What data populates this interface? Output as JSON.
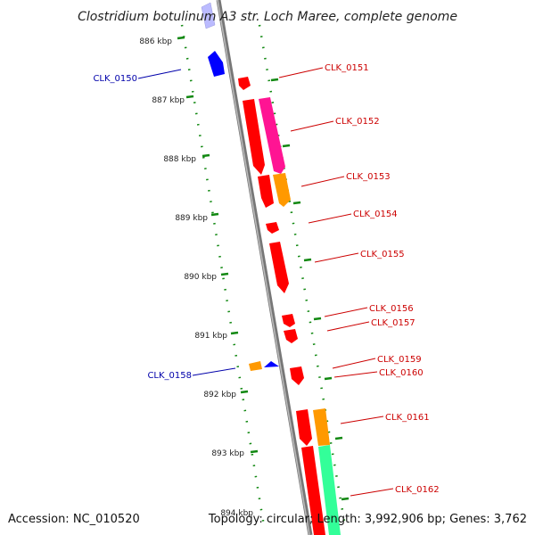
{
  "title": "Clostridium botulinum A3 str. Loch Maree, complete genome",
  "footer": {
    "accession": "Accession: NC_010520",
    "topology": "Topology: circular; Length: 3,992,906 bp; Genes: 3,762"
  },
  "colors": {
    "backbone": "#888888",
    "tick": "#118811",
    "forward_gene": "#ff0000",
    "reverse_gene": "#0000ff",
    "forward_label": "#cc0000",
    "reverse_label": "#0000aa",
    "magenta_feature": "#ff1493",
    "orange_feature": "#ff9900",
    "green_feature": "#33ff99"
  },
  "kbp_labels": [
    "886 kbp",
    "887 kbp",
    "888 kbp",
    "889 kbp",
    "890 kbp",
    "891 kbp",
    "892 kbp",
    "893 kbp",
    "894 kbp"
  ],
  "gene_labels": {
    "clk_0150": "CLK_0150",
    "clk_0151": "CLK_0151",
    "clk_0152": "CLK_0152",
    "clk_0153": "CLK_0153",
    "clk_0154": "CLK_0154",
    "clk_0155": "CLK_0155",
    "clk_0156": "CLK_0156",
    "clk_0157": "CLK_0157",
    "clk_0158": "CLK_0158",
    "clk_0159": "CLK_0159",
    "clk_0160": "CLK_0160",
    "clk_0161": "CLK_0161",
    "clk_0162": "CLK_0162"
  }
}
